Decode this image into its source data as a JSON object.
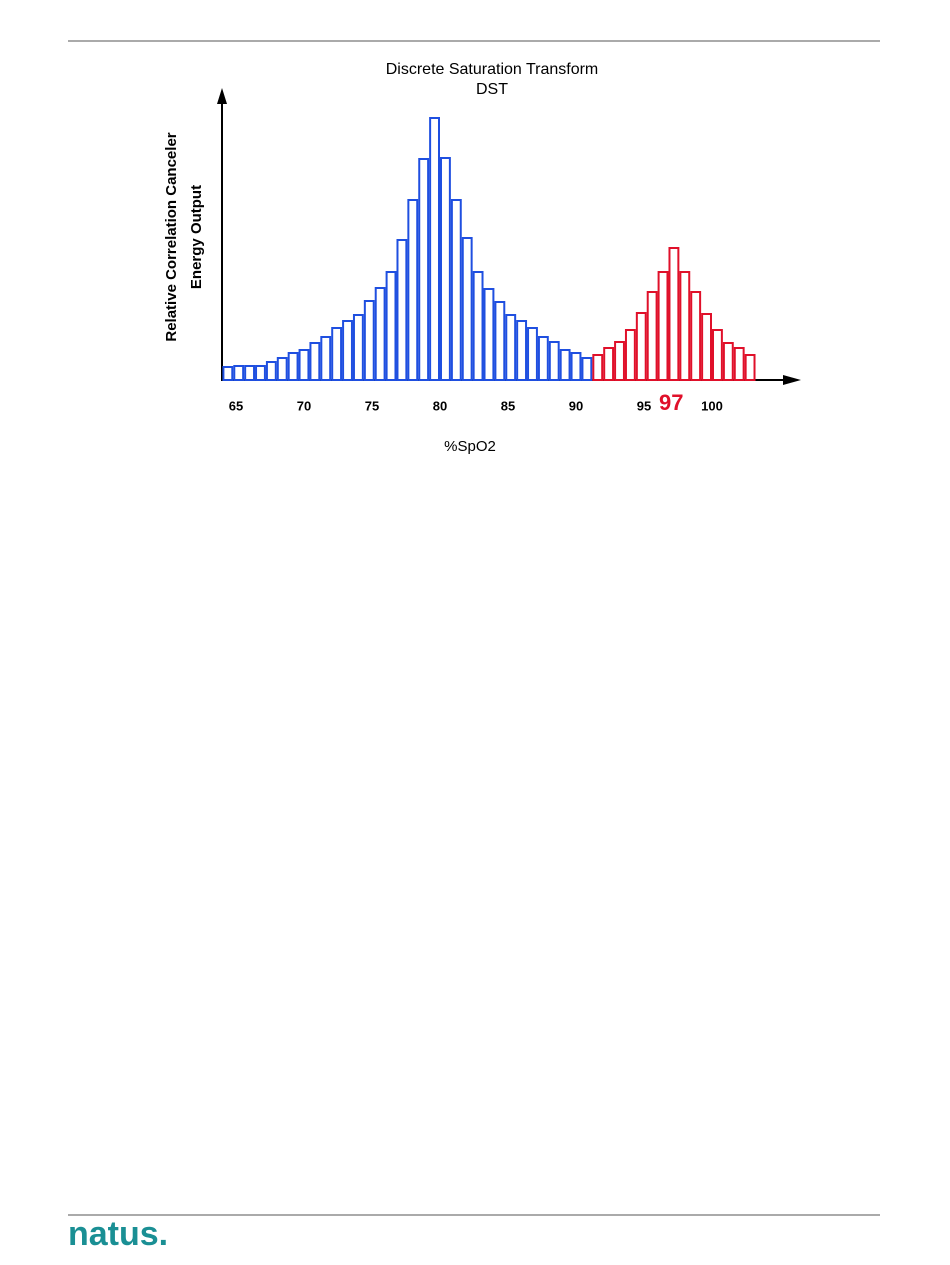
{
  "chart_data": {
    "type": "bar",
    "title": "Discrete Saturation Transform",
    "subtitle": "DST",
    "ylabel": [
      "Relative Correlation Canceler",
      "Energy Output"
    ],
    "xlabel": "%SpO2",
    "xticks": [
      65,
      70,
      75,
      80,
      85,
      90,
      95,
      100
    ],
    "highlight_tick": 97,
    "series": [
      {
        "color": "#1f4fe0",
        "x": [
          64.4,
          65.2,
          66.0,
          66.8,
          67.6,
          68.4,
          69.2,
          70.0,
          70.8,
          71.6,
          72.4,
          73.2,
          74.0,
          74.8,
          75.6,
          76.4,
          77.2,
          78.0,
          78.8,
          79.6,
          80.4,
          81.2,
          82.0,
          82.8,
          83.6,
          84.4,
          85.2,
          86.0,
          86.8,
          87.6,
          88.4,
          89.2,
          90.0,
          90.8
        ],
        "values": [
          13,
          14,
          14,
          14,
          18,
          22,
          27,
          30,
          37,
          43,
          52,
          59,
          65,
          79,
          92,
          108,
          140,
          180,
          221,
          262,
          222,
          180,
          142,
          108,
          91,
          78,
          65,
          59,
          52,
          43,
          38,
          30,
          27,
          22
        ]
      },
      {
        "color": "#e0102a",
        "x": [
          91.6,
          92.4,
          93.2,
          94.0,
          94.8,
          95.6,
          96.4,
          97.2,
          98.0,
          98.8,
          99.6,
          100.4,
          101.2,
          102.0,
          102.8
        ],
        "values": [
          25,
          32,
          38,
          50,
          67,
          88,
          108,
          132,
          108,
          88,
          66,
          50,
          37,
          32,
          25
        ]
      }
    ]
  },
  "footer": {
    "logo": "natus."
  }
}
